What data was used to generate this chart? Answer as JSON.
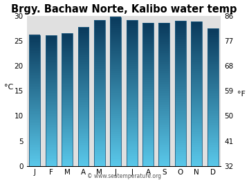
{
  "title": "Brgy. Bachaw Norte, Kalibo water temp",
  "months": [
    "J",
    "F",
    "M",
    "A",
    "M",
    "J",
    "J",
    "A",
    "S",
    "O",
    "N",
    "D"
  ],
  "values_c": [
    26.2,
    26.1,
    26.5,
    27.8,
    29.2,
    29.8,
    29.2,
    28.6,
    28.6,
    29.0,
    28.9,
    27.5
  ],
  "ylabel_left": "°C",
  "ylabel_right": "°F",
  "yticks_c": [
    0,
    5,
    10,
    15,
    20,
    25,
    30
  ],
  "yticks_f": [
    32,
    41,
    50,
    59,
    68,
    77,
    86
  ],
  "ylim_c": [
    0,
    30
  ],
  "bar_color_top": "#5ac8ea",
  "bar_color_bottom": "#0a3a5c",
  "bar_edge_color": "#1a5a80",
  "bg_color": "#e0e0e0",
  "fig_bg_color": "#ffffff",
  "watermark": "© www.seatemperature.org",
  "title_fontsize": 10.5,
  "axis_fontsize": 8,
  "tick_fontsize": 7.5
}
